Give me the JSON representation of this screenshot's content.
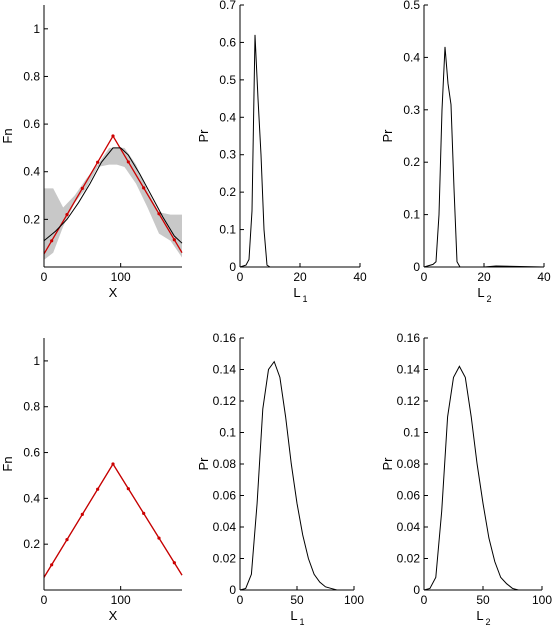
{
  "colors": {
    "axis": "#000000",
    "fit": "#000000",
    "truth": "#cc0000",
    "band": "#c8c8c8"
  },
  "chart_data": [
    {
      "type": "line",
      "xlabel": "X",
      "ylabel": "Fn",
      "xlim": [
        0,
        180
      ],
      "ylim": [
        0,
        1.1
      ],
      "xticks": [
        0,
        100
      ],
      "yticks": [
        0.2,
        0.4,
        0.6,
        0.8,
        1
      ],
      "band": {
        "x": [
          0,
          12,
          25,
          40,
          55,
          70,
          85,
          95,
          105,
          120,
          135,
          150,
          165,
          180
        ],
        "lower": [
          0.03,
          0.06,
          0.17,
          0.27,
          0.33,
          0.42,
          0.43,
          0.43,
          0.42,
          0.35,
          0.25,
          0.14,
          0.11,
          0.04
        ],
        "upper": [
          0.33,
          0.33,
          0.25,
          0.3,
          0.37,
          0.43,
          0.5,
          0.5,
          0.5,
          0.43,
          0.32,
          0.23,
          0.22,
          0.22
        ]
      },
      "series": [
        {
          "color": "red",
          "x": [
            0,
            90,
            180
          ],
          "y": [
            0.055,
            0.55,
            0.06
          ]
        },
        {
          "color": "black",
          "x": [
            0,
            15,
            30,
            45,
            60,
            75,
            90,
            100,
            110,
            125,
            140,
            155,
            170,
            180
          ],
          "y": [
            0.11,
            0.15,
            0.2,
            0.27,
            0.35,
            0.44,
            0.5,
            0.5,
            0.47,
            0.39,
            0.3,
            0.21,
            0.13,
            0.1
          ]
        }
      ]
    },
    {
      "type": "line",
      "xlabel": "L",
      "xlabel_sub": "1",
      "ylabel": "Pr",
      "xlim": [
        0,
        40
      ],
      "ylim": [
        0,
        0.7
      ],
      "xticks": [
        0,
        20,
        40
      ],
      "yticks": [
        0,
        0.1,
        0.2,
        0.3,
        0.4,
        0.5,
        0.6,
        0.7
      ],
      "series": [
        {
          "color": "black",
          "x": [
            0,
            2,
            3,
            4,
            5,
            6,
            7,
            8,
            9,
            10,
            40
          ],
          "y": [
            0,
            0.005,
            0.02,
            0.15,
            0.62,
            0.45,
            0.3,
            0.1,
            0.005,
            0,
            0
          ]
        }
      ]
    },
    {
      "type": "line",
      "xlabel": "L",
      "xlabel_sub": "2",
      "ylabel": "Pr",
      "xlim": [
        0,
        40
      ],
      "ylim": [
        0,
        0.5
      ],
      "xticks": [
        0,
        20,
        40
      ],
      "yticks": [
        0,
        0.1,
        0.2,
        0.3,
        0.4,
        0.5
      ],
      "series": [
        {
          "color": "black",
          "x": [
            0,
            3,
            4,
            5,
            6,
            7,
            8,
            9,
            10,
            11,
            12,
            20,
            24,
            40
          ],
          "y": [
            0,
            0.005,
            0.01,
            0.1,
            0.3,
            0.42,
            0.35,
            0.31,
            0.15,
            0.01,
            0,
            0,
            0.002,
            0
          ]
        }
      ]
    },
    {
      "type": "line",
      "xlabel": "X",
      "ylabel": "Fn",
      "xlim": [
        0,
        180
      ],
      "ylim": [
        0,
        1.1
      ],
      "xticks": [
        0,
        100
      ],
      "yticks": [
        0.2,
        0.4,
        0.6,
        0.8,
        1
      ],
      "series": [
        {
          "color": "black",
          "x": [
            0,
            90,
            180
          ],
          "y": [
            0.055,
            0.55,
            0.065
          ]
        },
        {
          "color": "red",
          "x": [
            0,
            90,
            180
          ],
          "y": [
            0.055,
            0.55,
            0.065
          ]
        }
      ]
    },
    {
      "type": "line",
      "xlabel": "L",
      "xlabel_sub": "1",
      "ylabel": "Pr",
      "xlim": [
        0,
        100
      ],
      "ylim": [
        0,
        0.16
      ],
      "xticks": [
        0,
        50,
        100
      ],
      "yticks": [
        0,
        0.02,
        0.04,
        0.06,
        0.08,
        0.1,
        0.12,
        0.14,
        0.16
      ],
      "series": [
        {
          "color": "black",
          "x": [
            0,
            5,
            10,
            15,
            20,
            25,
            30,
            35,
            40,
            45,
            50,
            55,
            60,
            65,
            70,
            75,
            80,
            85,
            100
          ],
          "y": [
            0,
            0.001,
            0.01,
            0.055,
            0.115,
            0.14,
            0.145,
            0.135,
            0.11,
            0.08,
            0.055,
            0.035,
            0.02,
            0.01,
            0.005,
            0.002,
            0.001,
            0,
            0
          ]
        }
      ]
    },
    {
      "type": "line",
      "xlabel": "L",
      "xlabel_sub": "2",
      "ylabel": "Pr",
      "xlim": [
        0,
        100
      ],
      "ylim": [
        0,
        0.16
      ],
      "xticks": [
        0,
        50,
        100
      ],
      "yticks": [
        0,
        0.02,
        0.04,
        0.06,
        0.08,
        0.1,
        0.12,
        0.14,
        0.16
      ],
      "series": [
        {
          "color": "black",
          "x": [
            0,
            5,
            10,
            15,
            20,
            25,
            30,
            35,
            40,
            45,
            50,
            55,
            60,
            65,
            70,
            75,
            80,
            85,
            100
          ],
          "y": [
            0,
            0.001,
            0.008,
            0.05,
            0.11,
            0.135,
            0.142,
            0.135,
            0.11,
            0.08,
            0.055,
            0.033,
            0.018,
            0.008,
            0.004,
            0.001,
            0,
            0,
            0
          ]
        }
      ]
    }
  ]
}
